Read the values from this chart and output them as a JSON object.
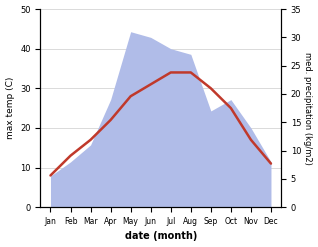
{
  "months": [
    "Jan",
    "Feb",
    "Mar",
    "Apr",
    "May",
    "Jun",
    "Jul",
    "Aug",
    "Sep",
    "Oct",
    "Nov",
    "Dec"
  ],
  "month_positions": [
    1,
    2,
    3,
    4,
    5,
    6,
    7,
    8,
    9,
    10,
    11,
    12
  ],
  "max_temp": [
    8,
    13,
    17,
    22,
    28,
    31,
    34,
    34,
    30,
    25,
    17,
    11
  ],
  "precipitation": [
    5.5,
    8,
    11,
    19,
    31,
    30,
    28,
    27,
    17,
    19,
    14,
    8
  ],
  "temp_ylim": [
    0,
    50
  ],
  "precip_ylim": [
    0,
    35
  ],
  "temp_yticks": [
    0,
    10,
    20,
    30,
    40,
    50
  ],
  "precip_yticks": [
    0,
    5,
    10,
    15,
    20,
    25,
    30,
    35
  ],
  "xlabel": "date (month)",
  "ylabel_left": "max temp (C)",
  "ylabel_right": "med. precipitation (kg/m2)",
  "temp_color": "#c0392b",
  "precip_fill_color": "#b0bce8",
  "background_color": "#ffffff",
  "line_width": 1.8,
  "fig_width": 3.18,
  "fig_height": 2.47,
  "dpi": 100
}
